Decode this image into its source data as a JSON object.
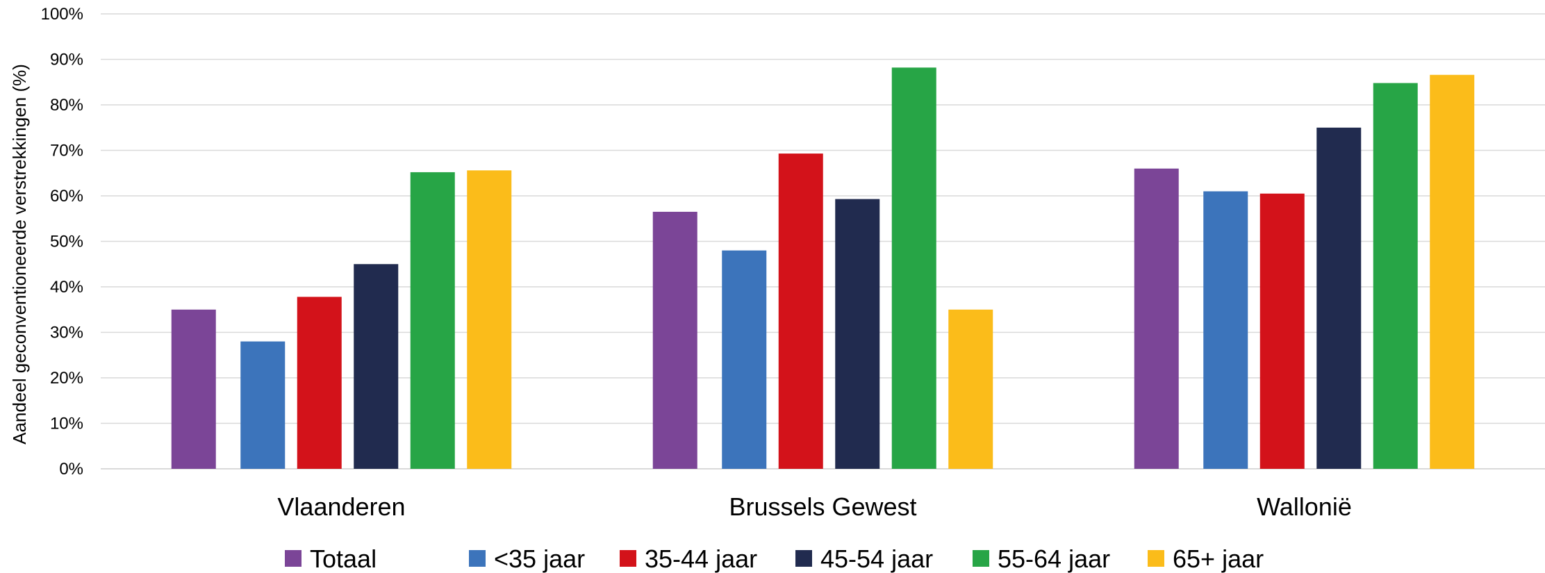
{
  "chart_data": {
    "type": "bar",
    "title": "",
    "xlabel": "",
    "ylabel": "Aandeel geconventioneerde verstrekkingen (%)",
    "ylim": [
      0,
      100
    ],
    "ytick_step": 10,
    "ytick_suffix": "%",
    "grid": true,
    "legend_position": "bottom",
    "categories": [
      "Vlaanderen",
      "Brussels Gewest",
      "Wallonië"
    ],
    "series": [
      {
        "name": "Totaal",
        "color": "#7b4597",
        "values": [
          35,
          56.5,
          66
        ]
      },
      {
        "name": "<35 jaar",
        "color": "#3c74bb",
        "values": [
          28,
          48,
          61
        ]
      },
      {
        "name": "35-44 jaar",
        "color": "#d3121a",
        "values": [
          37.8,
          69.3,
          60.5
        ]
      },
      {
        "name": "45-54 jaar",
        "color": "#212b4f",
        "values": [
          45,
          59.3,
          75
        ]
      },
      {
        "name": "55-64 jaar",
        "color": "#27a546",
        "values": [
          65.2,
          88.2,
          84.8
        ]
      },
      {
        "name": "65+ jaar",
        "color": "#fbbc1a",
        "values": [
          65.6,
          35,
          86.6
        ]
      }
    ]
  }
}
